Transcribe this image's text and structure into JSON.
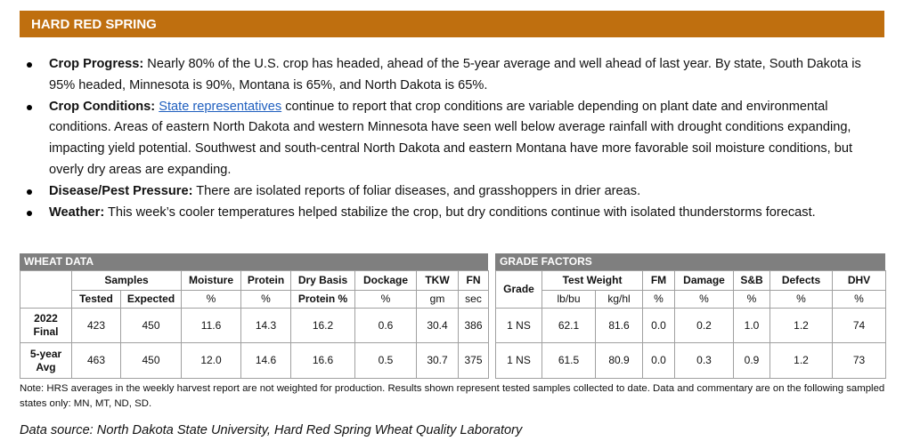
{
  "header": {
    "title": "HARD RED SPRING"
  },
  "bullets": [
    {
      "label": "Crop Progress:",
      "text": "Nearly 80% of the U.S. crop has headed, ahead of the 5-year average and well ahead of last year. By state, South Dakota is 95% headed, Minnesota is 90%, Montana is 65%, and North Dakota is 65%."
    },
    {
      "label": "Crop Conditions:",
      "link": "State representatives",
      "text": "continue to report that crop conditions are variable depending on plant date and environmental conditions. Areas of eastern North Dakota and western Minnesota have seen well below average rainfall with drought conditions expanding, impacting yield potential. Southwest and south-central North Dakota and eastern Montana have more favorable soil moisture conditions, but overly dry areas are expanding."
    },
    {
      "label": "Disease/Pest Pressure:",
      "text": "There are isolated reports of foliar diseases, and grasshoppers in drier areas."
    },
    {
      "label": "Weather:",
      "text": "This week’s cooler temperatures helped stabilize the crop, but dry conditions continue with isolated thunderstorms forecast."
    }
  ],
  "wheat_data": {
    "title": "WHEAT DATA",
    "group": "Samples",
    "columns": [
      [
        "Tested"
      ],
      [
        "Expected"
      ],
      [
        "Moisture",
        "%"
      ],
      [
        "Protein",
        "%"
      ],
      [
        "Dry Basis",
        "Protein %"
      ],
      [
        "Dockage",
        "%"
      ],
      [
        "TKW",
        "gm"
      ],
      [
        "FN",
        "sec"
      ]
    ],
    "rows": [
      {
        "label": [
          "2022",
          "Final"
        ],
        "cells": [
          "423",
          "450",
          "11.6",
          "14.3",
          "16.2",
          "0.6",
          "30.4",
          "386"
        ]
      },
      {
        "label": [
          "5-year",
          "Avg"
        ],
        "cells": [
          "463",
          "450",
          "12.0",
          "14.6",
          "16.6",
          "0.5",
          "30.7",
          "375"
        ]
      }
    ]
  },
  "grade_factors": {
    "title": "GRADE FACTORS",
    "grade": "Grade",
    "group": "Test Weight",
    "columns": [
      [
        "lb/bu"
      ],
      [
        "kg/hl"
      ],
      [
        "FM",
        "%"
      ],
      [
        "Damage",
        "%"
      ],
      [
        "S&B",
        "%"
      ],
      [
        "Defects",
        "%"
      ],
      [
        "DHV",
        "%"
      ]
    ],
    "rows": [
      {
        "grade": "1 NS",
        "cells": [
          "62.1",
          "81.6",
          "0.0",
          "0.2",
          "1.0",
          "1.2",
          "74"
        ]
      },
      {
        "grade": "1 NS",
        "cells": [
          "61.5",
          "80.9",
          "0.0",
          "0.3",
          "0.9",
          "1.2",
          "73"
        ]
      }
    ]
  },
  "note": "Note: HRS averages in the weekly harvest report are not weighted for production. Results shown represent tested samples collected to date. Data and commentary are on the following sampled states only: MN, MT, ND, SD.",
  "source": "Data source: North Dakota State University, Hard Red Spring Wheat Quality Laboratory"
}
